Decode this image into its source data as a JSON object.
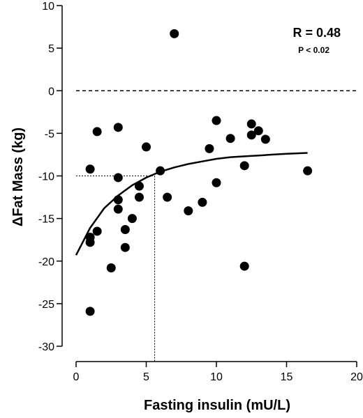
{
  "chart_data": {
    "type": "scatter",
    "title": "",
    "xlabel": "Fasting insulin  (mU/L)",
    "ylabel": "ΔFat  Mass  (kg)",
    "xlim": [
      0,
      20
    ],
    "ylim": [
      -30,
      10
    ],
    "xticks": [
      0,
      5,
      10,
      15,
      20
    ],
    "yticks": [
      10,
      5,
      0,
      -5,
      -10,
      -15,
      -20,
      -25,
      -30
    ],
    "grid": false,
    "annotations": {
      "r": "R = 0.48",
      "p": "P < 0.02"
    },
    "reference_lines": {
      "zero_line_y": 0,
      "crosshair": {
        "x": 5.6,
        "y": -10
      }
    },
    "fit_curve": {
      "description_type": "exponential-rise",
      "x": [
        0,
        1,
        2,
        3,
        4,
        5,
        6,
        7,
        8,
        9,
        10,
        11,
        12,
        13,
        14,
        15,
        16.5
      ],
      "y": [
        -19.3,
        -16.1,
        -13.8,
        -12.3,
        -11.1,
        -10.2,
        -9.5,
        -9.0,
        -8.6,
        -8.3,
        -8.0,
        -7.8,
        -7.7,
        -7.6,
        -7.5,
        -7.4,
        -7.3
      ]
    },
    "series": [
      {
        "points": [
          [
            1,
            -9.2
          ],
          [
            1,
            -17.2
          ],
          [
            1,
            -17.8
          ],
          [
            1,
            -25.9
          ],
          [
            1.5,
            -4.8
          ],
          [
            1.5,
            -16.5
          ],
          [
            2.5,
            -20.8
          ],
          [
            3,
            -4.3
          ],
          [
            3,
            -10.2
          ],
          [
            3,
            -12.8
          ],
          [
            3,
            -13.9
          ],
          [
            3.5,
            -16.3
          ],
          [
            3.5,
            -18.4
          ],
          [
            4,
            -15.0
          ],
          [
            4.5,
            -11.2
          ],
          [
            4.5,
            -12.5
          ],
          [
            5,
            -6.6
          ],
          [
            6,
            -9.4
          ],
          [
            6.5,
            -12.5
          ],
          [
            7,
            6.7
          ],
          [
            8,
            -14.1
          ],
          [
            9,
            -13.1
          ],
          [
            9.5,
            -6.8
          ],
          [
            10,
            -3.5
          ],
          [
            10,
            -10.8
          ],
          [
            11,
            -5.6
          ],
          [
            12,
            -8.8
          ],
          [
            12,
            -20.6
          ],
          [
            12.5,
            -3.9
          ],
          [
            12.5,
            -5.2
          ],
          [
            13,
            -4.7
          ],
          [
            13.5,
            -5.7
          ],
          [
            16.5,
            -9.4
          ]
        ]
      }
    ]
  }
}
